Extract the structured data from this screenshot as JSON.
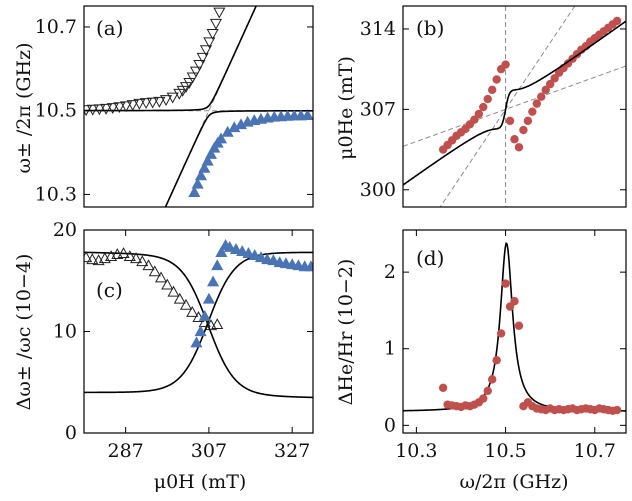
{
  "chart_data": [
    {
      "panel": "a",
      "type": "scatter",
      "panel_label": "(a)",
      "xlabel": "",
      "ylabel": "ω± /2π (GHz)",
      "xlim": [
        277,
        332
      ],
      "ylim": [
        10.27,
        10.75
      ],
      "xticks": [],
      "yticks": [
        10.3,
        10.5,
        10.7
      ],
      "ytick_labels": [
        "10.3",
        "10.5",
        "10.7"
      ],
      "colors": {
        "upper_markers": "#222222",
        "lower_markers": "#4a74b4",
        "fit": "#000000",
        "guides": "#8c8c8c"
      },
      "series": [
        {
          "marker": "open-triangle-down",
          "x": [
            277.5,
            279.1,
            280.7,
            282.3,
            283.9,
            285.5,
            287.1,
            288.7,
            290.3,
            291.9,
            293.5,
            295.1,
            296.7,
            298.3,
            299.9,
            300.7,
            301.5,
            302.3,
            303.1,
            303.9,
            304.7,
            305.5,
            306.3,
            307.1,
            307.9,
            308.7,
            309.5
          ],
          "y": [
            10.502,
            10.503,
            10.504,
            10.505,
            10.507,
            10.509,
            10.511,
            10.514,
            10.517,
            10.519,
            10.52,
            10.522,
            10.526,
            10.532,
            10.541,
            10.548,
            10.557,
            10.567,
            10.58,
            10.594,
            10.61,
            10.627,
            10.645,
            10.664,
            10.684,
            10.708,
            10.735
          ]
        },
        {
          "marker": "filled-triangle-up",
          "x": [
            303.5,
            304.3,
            305.1,
            305.9,
            306.7,
            307.5,
            308.3,
            309.1,
            309.9,
            311.5,
            313.1,
            314.7,
            316.3,
            317.9,
            319.5,
            321.1,
            322.7,
            324.3,
            325.9,
            327.5,
            329.1,
            330.7
          ],
          "y": [
            10.305,
            10.325,
            10.345,
            10.363,
            10.38,
            10.396,
            10.411,
            10.423,
            10.433,
            10.449,
            10.46,
            10.467,
            10.473,
            10.477,
            10.48,
            10.483,
            10.485,
            10.486,
            10.487,
            10.488,
            10.488,
            10.489
          ]
        }
      ]
    },
    {
      "panel": "b",
      "type": "scatter",
      "panel_label": "(b)",
      "xlabel": "",
      "ylabel": "μ0He (mT)",
      "xlim": [
        10.27,
        10.77
      ],
      "ylim": [
        298.5,
        316.0
      ],
      "xticks": [],
      "yticks": [
        300,
        307,
        314
      ],
      "ytick_labels": [
        "300",
        "307",
        "314"
      ],
      "colors": {
        "markers": "#c0504d",
        "fit": "#000000",
        "guides": "#8c8c8c"
      },
      "series": [
        {
          "marker": "filled-circle",
          "x": [
            10.36,
            10.37,
            10.38,
            10.39,
            10.4,
            10.41,
            10.42,
            10.43,
            10.44,
            10.45,
            10.46,
            10.47,
            10.48,
            10.49,
            10.5,
            10.51,
            10.52,
            10.53,
            10.54,
            10.55,
            10.56,
            10.57,
            10.58,
            10.59,
            10.6,
            10.61,
            10.62,
            10.63,
            10.64,
            10.65,
            10.66,
            10.67,
            10.68,
            10.69,
            10.7,
            10.71,
            10.72,
            10.73,
            10.74,
            10.75
          ],
          "y": [
            303.5,
            303.9,
            304.3,
            304.7,
            305.0,
            305.3,
            305.7,
            306.1,
            306.6,
            307.2,
            307.9,
            308.7,
            309.6,
            310.5,
            310.9,
            306.0,
            304.4,
            303.7,
            305.2,
            306.0,
            306.8,
            307.5,
            308.1,
            308.7,
            309.2,
            309.7,
            310.2,
            310.6,
            311.0,
            311.4,
            311.8,
            312.2,
            312.5,
            312.9,
            313.2,
            313.5,
            313.8,
            314.1,
            314.4,
            314.7
          ]
        }
      ]
    },
    {
      "panel": "c",
      "type": "scatter",
      "panel_label": "(c)",
      "xlabel": "μ0H (mT)",
      "ylabel": "Δω± /ωc (10−4)",
      "xlim": [
        277,
        332
      ],
      "ylim": [
        0,
        20
      ],
      "xticks": [
        287,
        307,
        327
      ],
      "xtick_labels": [
        "287",
        "307",
        "327"
      ],
      "yticks": [
        0,
        10,
        20
      ],
      "ytick_labels": [
        "0",
        "10",
        "20"
      ],
      "colors": {
        "open_markers": "#222222",
        "filled_markers": "#4a74b4",
        "fit": "#000000"
      },
      "series": [
        {
          "marker": "open-triangle-up",
          "x": [
            277.5,
            279.0,
            280.5,
            282.0,
            283.5,
            285.0,
            286.5,
            288.0,
            289.5,
            291.0,
            292.5,
            294.0,
            295.5,
            297.0,
            298.5,
            300.0,
            301.5,
            303.0,
            304.5,
            306.0,
            307.5,
            309.0
          ],
          "y": [
            17.3,
            17.1,
            17.0,
            17.2,
            17.4,
            17.6,
            17.7,
            17.4,
            17.2,
            16.9,
            16.5,
            15.9,
            15.3,
            14.6,
            13.9,
            13.2,
            12.6,
            11.9,
            11.4,
            10.9,
            10.6,
            10.7
          ]
        },
        {
          "marker": "filled-triangle-up",
          "x": [
            304.0,
            305.0,
            306.0,
            307.0,
            308.0,
            309.0,
            310.0,
            311.0,
            312.0,
            313.5,
            315.0,
            316.5,
            318.0,
            319.5,
            321.0,
            322.5,
            324.0,
            325.5,
            327.0,
            328.5,
            330.0,
            331.5
          ],
          "y": [
            8.9,
            10.0,
            11.5,
            13.2,
            14.9,
            16.5,
            17.8,
            18.5,
            18.3,
            18.1,
            17.9,
            17.7,
            17.5,
            17.3,
            17.1,
            17.0,
            16.8,
            16.7,
            16.6,
            16.5,
            16.4,
            16.4
          ]
        }
      ]
    },
    {
      "panel": "d",
      "type": "scatter",
      "panel_label": "(d)",
      "xlabel": "ω/2π (GHz)",
      "ylabel": "ΔHe/Hr (10−2)",
      "xlim": [
        10.27,
        10.77
      ],
      "ylim": [
        -0.1,
        2.55
      ],
      "xticks": [
        10.3,
        10.5,
        10.7
      ],
      "xtick_labels": [
        "10.3",
        "10.5",
        "10.7"
      ],
      "yticks": [
        0,
        1,
        2
      ],
      "ytick_labels": [
        "0",
        "1",
        "2"
      ],
      "colors": {
        "markers": "#c0504d",
        "fit": "#000000"
      },
      "series": [
        {
          "marker": "filled-circle",
          "x": [
            10.36,
            10.37,
            10.38,
            10.39,
            10.4,
            10.41,
            10.42,
            10.43,
            10.44,
            10.45,
            10.46,
            10.47,
            10.48,
            10.49,
            10.5,
            10.51,
            10.52,
            10.53,
            10.54,
            10.55,
            10.56,
            10.57,
            10.58,
            10.59,
            10.6,
            10.61,
            10.62,
            10.63,
            10.64,
            10.65,
            10.66,
            10.67,
            10.68,
            10.69,
            10.7,
            10.71,
            10.72,
            10.73,
            10.74,
            10.75
          ],
          "y": [
            0.49,
            0.27,
            0.26,
            0.25,
            0.24,
            0.26,
            0.25,
            0.27,
            0.3,
            0.35,
            0.45,
            0.6,
            0.85,
            1.2,
            1.85,
            1.55,
            1.62,
            1.3,
            0.25,
            0.3,
            0.25,
            0.22,
            0.21,
            0.2,
            0.22,
            0.2,
            0.21,
            0.2,
            0.21,
            0.22,
            0.2,
            0.21,
            0.22,
            0.21,
            0.2,
            0.22,
            0.21,
            0.2,
            0.19,
            0.2
          ]
        }
      ]
    }
  ]
}
